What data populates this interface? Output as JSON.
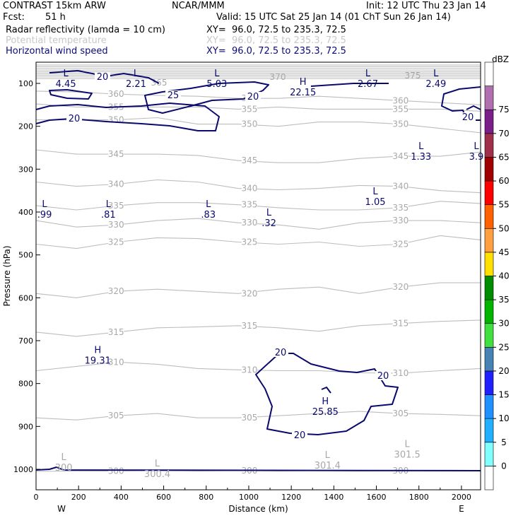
{
  "header": {
    "model": "CONTRAST 15km ARW",
    "org": "NCAR/MMM",
    "init": "Init: 12 UTC Thu 23 Jan 14",
    "fcst_label": "Fcst:",
    "fcst_value": "51 h",
    "valid": "Valid: 15 UTC Sat 25 Jan 14 (01 ChT Sun 26 Jan 14)",
    "fields": [
      {
        "name": "Radar reflectivity (lamda = 10 cm)",
        "xy": "XY=  96.0, 72.5 to 235.3, 72.5",
        "color": "#000000"
      },
      {
        "name": "Potential temperature",
        "xy": "XY=  96.0, 72.5 to 235.3, 72.5",
        "color": "#c8c8c8"
      },
      {
        "name": "Horizontal wind speed",
        "xy": "XY=  96.0, 72.5 to 235.3, 72.5",
        "color": "#0a0a78"
      }
    ]
  },
  "chart_data": {
    "type": "cross-section contour",
    "xlabel": "Distance (km)",
    "ylabel": "Pressure (hPa)",
    "xlim": [
      0,
      2090
    ],
    "x_ticks": [
      0,
      200,
      400,
      600,
      800,
      1000,
      1200,
      1400,
      1600,
      1800,
      2000
    ],
    "y_ticks": [
      100,
      200,
      300,
      400,
      500,
      600,
      700,
      800,
      900,
      1000
    ],
    "x_end_labels": {
      "left": "W",
      "right": "E"
    },
    "theta_lines": [
      {
        "label": "300",
        "p": [
          1005,
          1004,
          1004,
          1003,
          1004,
          1003,
          1004,
          1003,
          1004,
          1003,
          1004,
          1004
        ]
      },
      {
        "label": "305",
        "p": [
          880,
          885,
          875,
          870,
          880,
          880,
          875,
          870,
          865,
          870,
          872,
          875
        ]
      },
      {
        "label": "310",
        "p": [
          770,
          760,
          750,
          755,
          765,
          768,
          770,
          770,
          775,
          776,
          770,
          765
        ]
      },
      {
        "label": "315",
        "p": [
          680,
          690,
          680,
          670,
          668,
          665,
          670,
          678,
          665,
          660,
          655,
          652
        ]
      },
      {
        "label": "320",
        "p": [
          590,
          600,
          585,
          580,
          585,
          590,
          580,
          575,
          590,
          575,
          565,
          565
        ]
      },
      {
        "label": "325",
        "p": [
          475,
          485,
          470,
          460,
          462,
          470,
          475,
          470,
          480,
          475,
          455,
          465
        ]
      },
      {
        "label": "330",
        "p": [
          420,
          435,
          430,
          420,
          415,
          425,
          430,
          440,
          425,
          420,
          420,
          425
        ]
      },
      {
        "label": "335",
        "p": [
          385,
          395,
          385,
          378,
          378,
          383,
          390,
          395,
          395,
          390,
          375,
          380
        ]
      },
      {
        "label": "340",
        "p": [
          330,
          340,
          335,
          325,
          330,
          345,
          348,
          345,
          338,
          340,
          350,
          355
        ]
      },
      {
        "label": "345",
        "p": [
          255,
          265,
          265,
          265,
          268,
          280,
          285,
          285,
          275,
          270,
          270,
          260
        ]
      },
      {
        "label": "350",
        "p": [
          185,
          185,
          185,
          180,
          195,
          195,
          200,
          190,
          190,
          195,
          205,
          215
        ]
      },
      {
        "label": "355",
        "p": [
          148,
          155,
          155,
          155,
          155,
          160,
          155,
          160,
          160,
          160,
          160,
          165
        ]
      },
      {
        "label": "360",
        "p": [
          118,
          120,
          125,
          128,
          130,
          135,
          135,
          130,
          135,
          140,
          145,
          150
        ]
      }
    ],
    "theta_labels": [
      "300",
      "305",
      "310",
      "315",
      "320",
      "325",
      "330",
      "335",
      "340",
      "345",
      "350",
      "355",
      "360",
      "365",
      "370",
      "375"
    ],
    "wind_contour_labels": [
      "20",
      "25"
    ],
    "extrema": [
      {
        "kind": "L",
        "value": "4.45",
        "x": 140,
        "p": 95
      },
      {
        "kind": "L",
        "value": "2.21",
        "x": 470,
        "p": 95
      },
      {
        "kind": "L",
        "value": "5.03",
        "x": 850,
        "p": 95
      },
      {
        "kind": "H",
        "value": "22.15",
        "x": 1255,
        "p": 115
      },
      {
        "kind": "L",
        "value": "2.67",
        "x": 1560,
        "p": 95
      },
      {
        "kind": "L",
        "value": "2.49",
        "x": 1880,
        "p": 95
      },
      {
        "kind": "L",
        "value": "1.33",
        "x": 1810,
        "p": 265
      },
      {
        "kind": "L",
        "value": "3.9",
        "x": 2070,
        "p": 265
      },
      {
        "kind": "L",
        "value": ".99",
        "x": 40,
        "p": 400
      },
      {
        "kind": "L",
        "value": ".81",
        "x": 340,
        "p": 400
      },
      {
        "kind": "L",
        "value": ".83",
        "x": 810,
        "p": 400
      },
      {
        "kind": "L",
        "value": ".32",
        "x": 1095,
        "p": 420
      },
      {
        "kind": "L",
        "value": "1.05",
        "x": 1595,
        "p": 370
      },
      {
        "kind": "H",
        "value": "19.31",
        "x": 290,
        "p": 740
      },
      {
        "kind": "H",
        "value": "25.85",
        "x": 1360,
        "p": 860
      }
    ],
    "surface_theta_minima": [
      {
        "kind": "L",
        "value": "300",
        "x": 130,
        "p": 990
      },
      {
        "kind": "L",
        "value": "300.4",
        "x": 570,
        "p": 1005
      },
      {
        "kind": "L",
        "value": "301.4",
        "x": 1370,
        "p": 985
      },
      {
        "kind": "L",
        "value": "301.5",
        "x": 1745,
        "p": 960
      }
    ],
    "colorbar": {
      "unit": "dBZ",
      "levels": [
        "0",
        "5",
        "10",
        "15",
        "20",
        "25",
        "30",
        "35",
        "40",
        "45",
        "50",
        "55",
        "60",
        "65",
        "70",
        "75"
      ],
      "colors": [
        "#ffffff",
        "#80ffff",
        "#20b0ff",
        "#1e90ff",
        "#2020ff",
        "#4682b4",
        "#40e040",
        "#00b400",
        "#008c00",
        "#ffe000",
        "#ffa040",
        "#ff6000",
        "#ff0000",
        "#a00000",
        "#a0304a",
        "#7a1e8a",
        "#b070b0",
        "#ffffff"
      ]
    }
  }
}
